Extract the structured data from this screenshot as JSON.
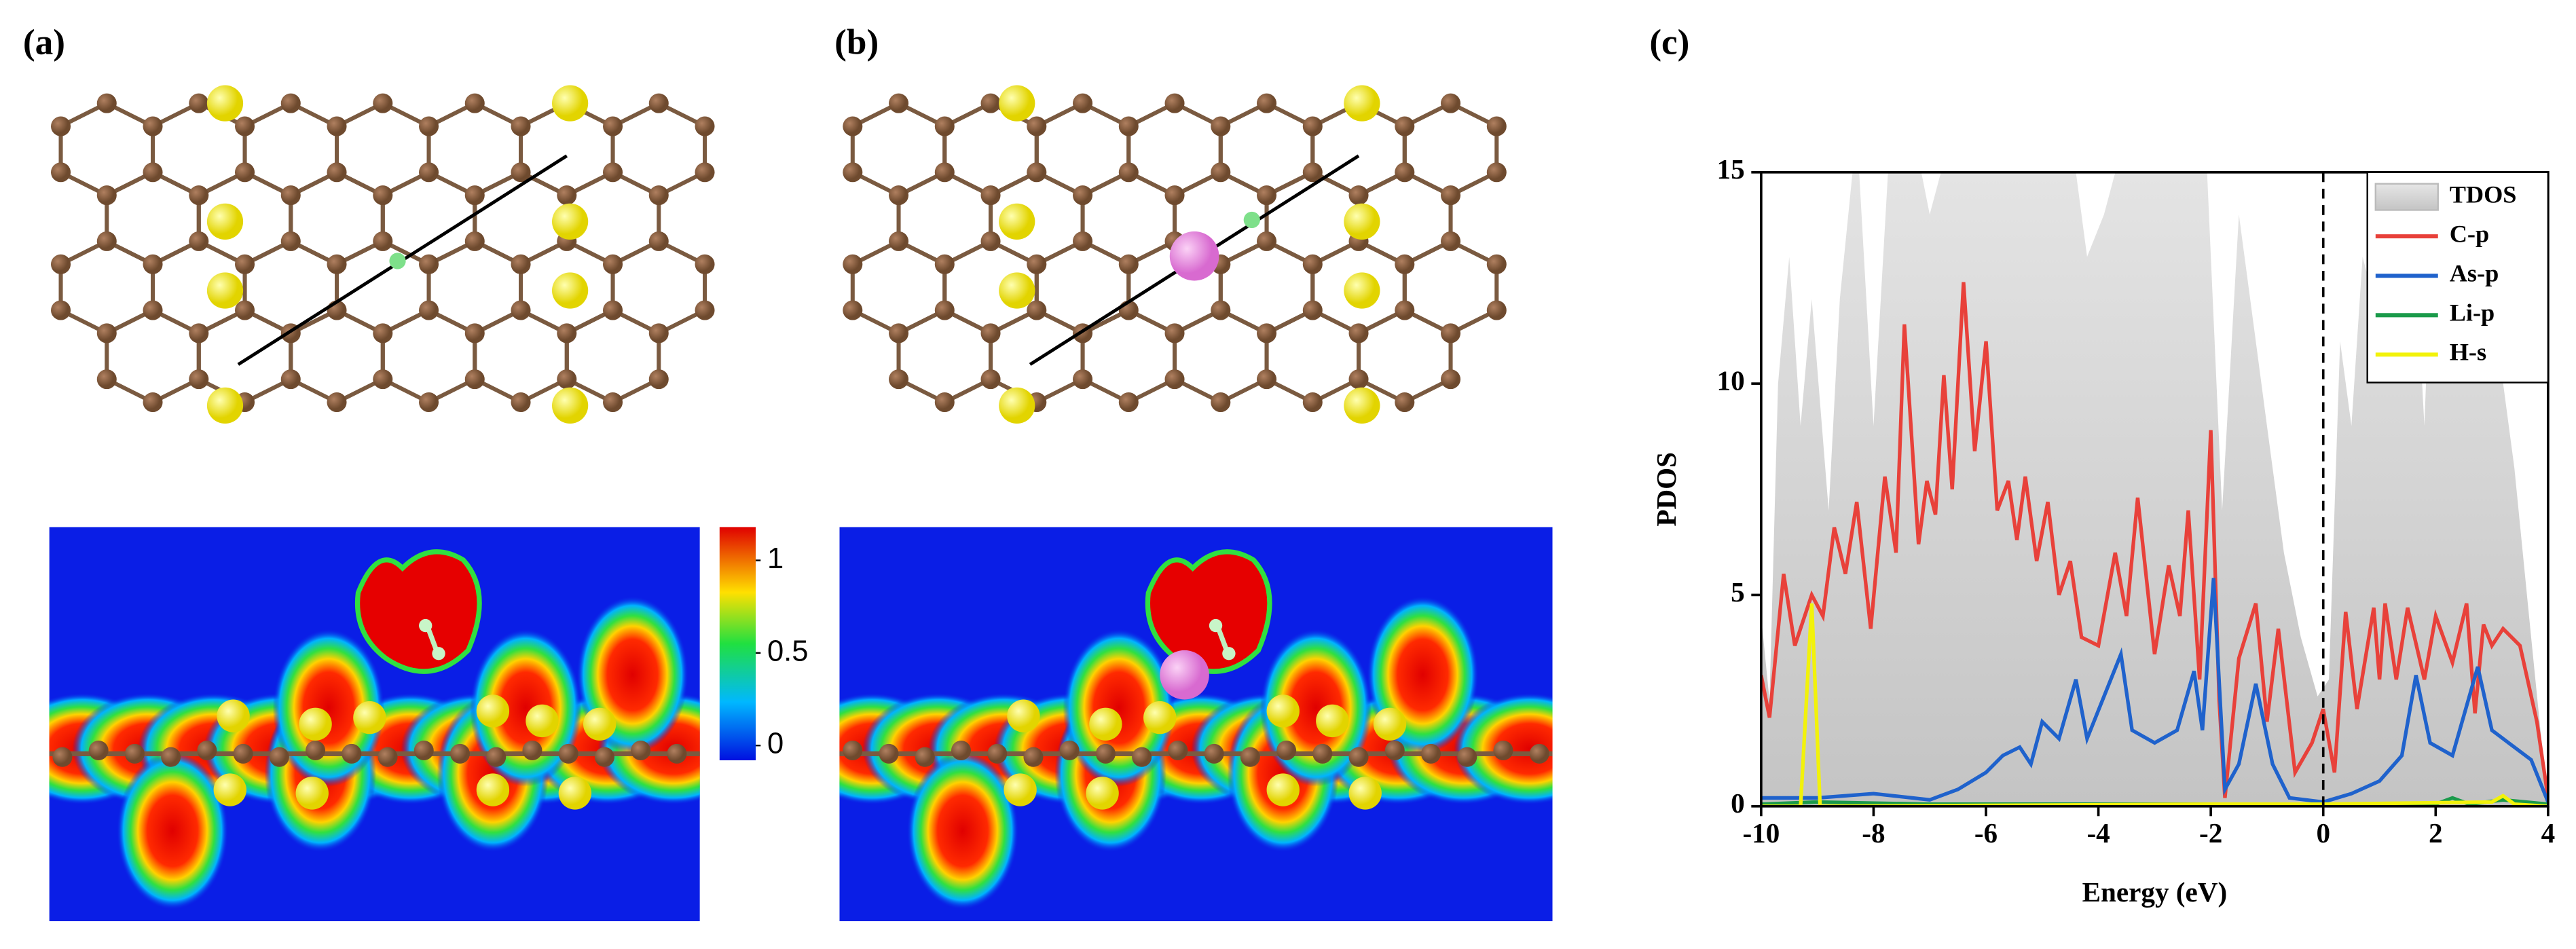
{
  "panel_labels": [
    "(a)",
    "(b)",
    "(c)"
  ],
  "colorbar": {
    "ticks": [
      1,
      0.5,
      0
    ],
    "lim": [
      -0.08,
      1.18
    ]
  },
  "chart_data": {
    "type": "line",
    "xlabel": "Energy (eV)",
    "ylabel": "PDOS",
    "xlim": [
      -10,
      4
    ],
    "ylim": [
      0,
      15
    ],
    "xticks": [
      -10,
      -8,
      -6,
      -4,
      -2,
      0,
      2,
      4
    ],
    "yticks": [
      0,
      5,
      10,
      15
    ],
    "reference_line_x": 0,
    "legend": "upper right",
    "series": [
      {
        "name": "TDOS",
        "color": "#d4d4d4",
        "fill": true,
        "x": [
          -10,
          -9.85,
          -9.7,
          -9.5,
          -9.3,
          -9.1,
          -8.8,
          -8.6,
          -8.3,
          -8.0,
          -7.7,
          -7.3,
          -7.0,
          -6.6,
          -6.0,
          -5.0,
          -4.5,
          -4.2,
          -3.9,
          -3.5,
          -3.0,
          -2.5,
          -2.1,
          -1.8,
          -1.5,
          -1.2,
          -1.0,
          -0.7,
          -0.4,
          -0.1,
          0.1,
          0.3,
          0.5,
          0.7,
          0.9,
          1.1,
          1.3,
          1.6,
          1.8,
          2.0,
          2.3,
          2.6,
          3.0,
          3.4,
          3.7,
          4.0
        ],
        "values": [
          4.5,
          2.5,
          10,
          13,
          9,
          12,
          7,
          12,
          16,
          9,
          16,
          16,
          14,
          16,
          16,
          16,
          16,
          13,
          14,
          16,
          16,
          16,
          16,
          7,
          14,
          11,
          9,
          6,
          4,
          2.6,
          3,
          11,
          9,
          13,
          12,
          16,
          11,
          14,
          9,
          16,
          10,
          13,
          12,
          8,
          4,
          0
        ]
      },
      {
        "name": "C-p",
        "color": "#e8413a",
        "x": [
          -10,
          -9.85,
          -9.6,
          -9.4,
          -9.1,
          -8.9,
          -8.7,
          -8.5,
          -8.3,
          -8.05,
          -7.8,
          -7.6,
          -7.45,
          -7.2,
          -7.05,
          -6.9,
          -6.75,
          -6.6,
          -6.4,
          -6.2,
          -6.0,
          -5.8,
          -5.6,
          -5.45,
          -5.3,
          -5.1,
          -4.9,
          -4.7,
          -4.5,
          -4.3,
          -4.0,
          -3.7,
          -3.5,
          -3.3,
          -3.0,
          -2.75,
          -2.55,
          -2.4,
          -2.2,
          -2.0,
          -1.85,
          -1.75,
          -1.5,
          -1.2,
          -1.0,
          -0.8,
          -0.5,
          -0.2,
          0.0,
          0.2,
          0.4,
          0.6,
          0.9,
          1.0,
          1.1,
          1.3,
          1.5,
          1.8,
          2.0,
          2.3,
          2.55,
          2.7,
          2.85,
          3.0,
          3.2,
          3.5,
          3.8,
          4.0
        ],
        "values": [
          3.1,
          2.1,
          5.5,
          3.8,
          5.0,
          4.5,
          6.6,
          5.5,
          7.2,
          4.2,
          7.8,
          6.0,
          11.4,
          6.2,
          7.7,
          6.9,
          10.2,
          7.5,
          12.4,
          8.4,
          11.0,
          7.0,
          7.7,
          6.3,
          7.8,
          5.8,
          7.2,
          5.0,
          5.8,
          4.0,
          3.8,
          6.0,
          4.5,
          7.3,
          3.6,
          5.7,
          4.5,
          7.0,
          3.0,
          8.9,
          2.5,
          0.2,
          3.5,
          4.8,
          2.0,
          4.2,
          0.8,
          1.5,
          2.3,
          0.8,
          4.6,
          2.3,
          4.7,
          3.0,
          4.8,
          3.0,
          4.7,
          3.0,
          4.5,
          3.4,
          4.8,
          2.2,
          4.3,
          3.8,
          4.2,
          3.8,
          2.0,
          0.2
        ]
      },
      {
        "name": "As-p",
        "color": "#1f62cc",
        "x": [
          -10,
          -9,
          -8,
          -7,
          -6.5,
          -6,
          -5.7,
          -5.4,
          -5.2,
          -5.0,
          -4.7,
          -4.4,
          -4.2,
          -3.9,
          -3.6,
          -3.4,
          -3.0,
          -2.6,
          -2.3,
          -2.15,
          -1.95,
          -1.75,
          -1.5,
          -1.2,
          -0.9,
          -0.6,
          0,
          0.5,
          1.0,
          1.4,
          1.65,
          1.9,
          2.3,
          2.75,
          3.0,
          3.3,
          3.7,
          4.0
        ],
        "values": [
          0.2,
          0.2,
          0.3,
          0.15,
          0.4,
          0.8,
          1.2,
          1.4,
          1.0,
          2.0,
          1.6,
          3.0,
          1.6,
          2.6,
          3.6,
          1.8,
          1.5,
          1.8,
          3.2,
          1.8,
          5.4,
          0.4,
          1.0,
          2.9,
          1.0,
          0.2,
          0.1,
          0.3,
          0.6,
          1.2,
          3.1,
          1.5,
          1.2,
          3.3,
          1.8,
          1.5,
          1.1,
          0.1
        ]
      },
      {
        "name": "Li-p",
        "color": "#1a9a4a",
        "x": [
          -10,
          -9,
          -7,
          -5,
          -2,
          0,
          2,
          2.3,
          2.6,
          3.2,
          4
        ],
        "values": [
          0.05,
          0.1,
          0.05,
          0.05,
          0.05,
          0.02,
          0.05,
          0.2,
          0.05,
          0.15,
          0.05
        ]
      },
      {
        "name": "H-s",
        "color": "#f2f20a",
        "x": [
          -10,
          -9.3,
          -9.1,
          -8.95,
          -2,
          0,
          3,
          3.2,
          3.4,
          4
        ],
        "values": [
          0,
          0,
          4.8,
          0,
          0.05,
          0.05,
          0.1,
          0.25,
          0.05,
          0
        ]
      }
    ]
  }
}
